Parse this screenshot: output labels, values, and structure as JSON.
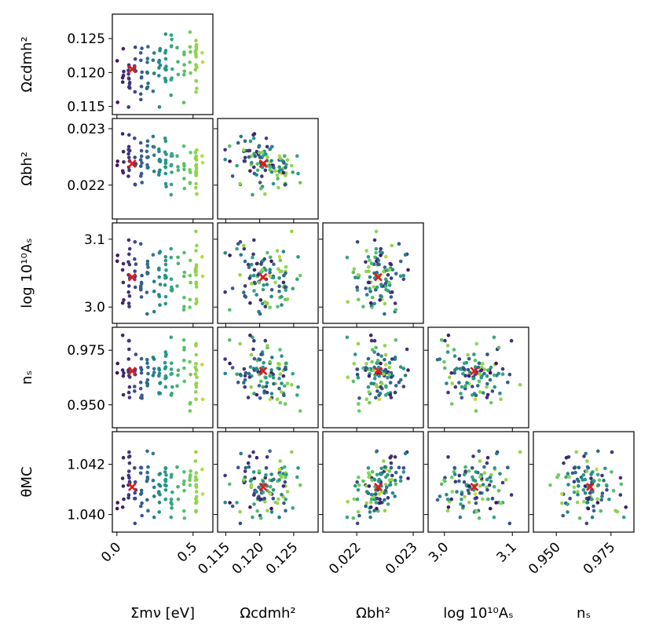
{
  "chart_data": {
    "type": "scatter",
    "layout": "corner-plot",
    "colormap": "viridis",
    "colormap_stops": [
      "#440154",
      "#3b528b",
      "#21918c",
      "#5ec962",
      "#fde725"
    ],
    "marker_color": "#e31a1c",
    "parameters": [
      {
        "id": "mnu",
        "label": "Σmν [eV]",
        "axis": [
          -0.03,
          0.63
        ],
        "ticks": [
          0.0,
          0.5
        ],
        "tick_labels": [
          "0.0",
          "0.5"
        ],
        "marker": 0.1
      },
      {
        "id": "omch2",
        "label": "Ωcdmh²",
        "axis": [
          0.1138,
          0.1286
        ],
        "ticks": [
          0.115,
          0.12,
          0.125
        ],
        "tick_labels": [
          "0.115",
          "0.120",
          "0.125"
        ],
        "marker": 0.1205
      },
      {
        "id": "ombh2",
        "label": "Ωbh²",
        "axis": [
          0.0214,
          0.02318
        ],
        "ticks": [
          0.022,
          0.023
        ],
        "tick_labels": [
          "0.022",
          "0.023"
        ],
        "marker": 0.02238
      },
      {
        "id": "logA",
        "label": "log 10¹⁰Aₛ",
        "axis": [
          2.976,
          3.124
        ],
        "ticks": [
          3.0,
          3.1
        ],
        "tick_labels": [
          "3.0",
          "3.1"
        ],
        "marker": 3.044
      },
      {
        "id": "ns",
        "label": "nₛ",
        "axis": [
          0.9395,
          0.9855
        ],
        "ticks": [
          0.95,
          0.975
        ],
        "tick_labels": [
          "0.950",
          "0.975"
        ],
        "marker": 0.9655
      },
      {
        "id": "theta",
        "label": "θMC",
        "axis": [
          1.0393,
          1.0433
        ],
        "ticks": [
          1.04,
          1.042
        ],
        "tick_labels": [
          "1.040",
          "1.042"
        ],
        "marker": 1.0411
      }
    ],
    "row_labels": [
      "Ωcdmh²",
      "Ωbh²",
      "log 10¹⁰Aₛ",
      "nₛ",
      "θMC"
    ],
    "col_labels": [
      "Σmν [eV]",
      "Ωcdmh²",
      "Ωbh²",
      "log 10¹⁰Aₛ",
      "nₛ"
    ],
    "sample_count": 110,
    "color_by": "mnu"
  }
}
